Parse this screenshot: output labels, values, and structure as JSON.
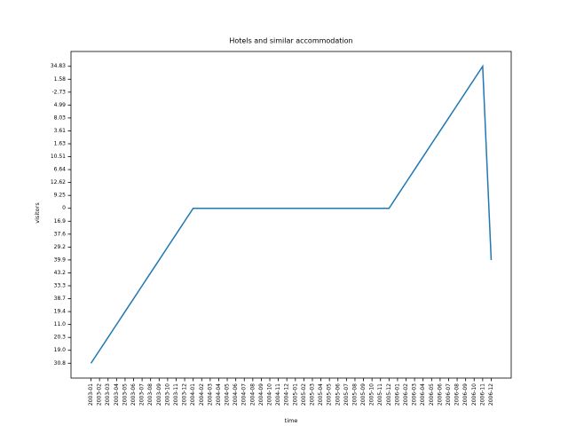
{
  "chart_data": {
    "type": "line",
    "title": "Hotels and similar accommodation",
    "xlabel": "time",
    "ylabel": "visitors",
    "categories": [
      "2003-01",
      "2003-02",
      "2003-03",
      "2003-04",
      "2003-05",
      "2003-06",
      "2003-07",
      "2003-08",
      "2003-09",
      "2003-10",
      "2003-11",
      "2003-12",
      "2004-01",
      "2004-02",
      "2004-03",
      "2004-04",
      "2004-05",
      "2004-06",
      "2004-07",
      "2004-08",
      "2004-09",
      "2004-10",
      "2004-11",
      "2004-12",
      "2005-01",
      "2005-02",
      "2005-03",
      "2005-04",
      "2005-05",
      "2005-06",
      "2005-07",
      "2005-08",
      "2005-09",
      "2005-10",
      "2005-11",
      "2005-12",
      "2006-01",
      "2006-02",
      "2006-03",
      "2006-04",
      "2006-05",
      "2006-06",
      "2006-07",
      "2006-08",
      "2006-09",
      "2006-10",
      "2006-11",
      "2006-12"
    ],
    "ycategories": [
      "30.8",
      "19.0",
      "20.3",
      "11.0",
      "19.4",
      "38.7",
      "33.3",
      "43.2",
      "39.9",
      "29.2",
      "37.6",
      "16.9",
      "0",
      "9.25",
      "12.62",
      "6.64",
      "10.51",
      "1.63",
      "3.61",
      "8.03",
      "4.99",
      "-2.73",
      "1.58",
      "34.83"
    ],
    "series": [
      {
        "name": "visitors",
        "color": "#1f77b4",
        "values": [
          "30.8",
          "19.0",
          "20.3",
          "11.0",
          "19.4",
          "38.7",
          "33.3",
          "43.2",
          "39.9",
          "29.2",
          "37.6",
          "16.9",
          "0",
          "0",
          "0",
          "0",
          "0",
          "0",
          "0",
          "0",
          "0",
          "0",
          "0",
          "0",
          "0",
          "0",
          "0",
          "0",
          "0",
          "0",
          "0",
          "0",
          "0",
          "0",
          "0",
          "0",
          "9.25",
          "12.62",
          "6.64",
          "10.51",
          "1.63",
          "3.61",
          "8.03",
          "4.99",
          "-2.73",
          "1.58",
          "34.83",
          "39.9"
        ]
      }
    ]
  }
}
